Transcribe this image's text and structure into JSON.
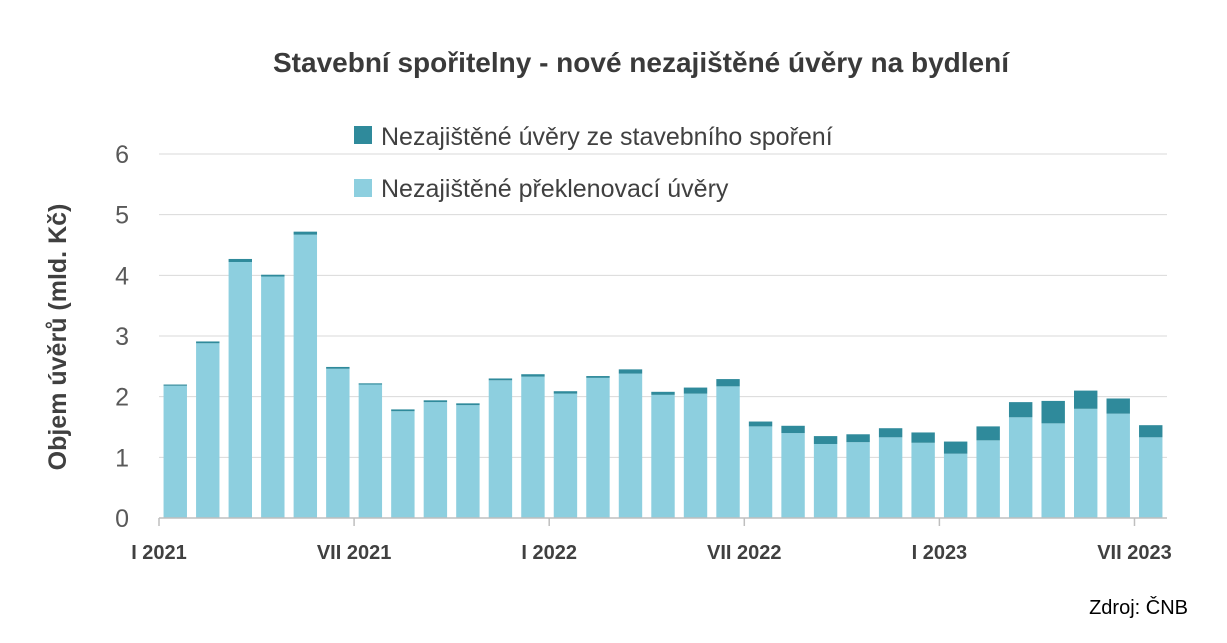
{
  "chart_data": {
    "type": "bar",
    "stacked": true,
    "title": "Stavební spořitelny - nové nezajištěné úvěry na bydlení",
    "ylabel": "Objem úvěrů (mld. Kč)",
    "xlabel": "",
    "ylim": [
      0,
      6
    ],
    "yticks": [
      0,
      1,
      2,
      3,
      4,
      5,
      6
    ],
    "grid": true,
    "legend_position": "top-center",
    "x_tick_labels": [
      {
        "index": 0,
        "label": "I 2021"
      },
      {
        "index": 6,
        "label": "VII 2021"
      },
      {
        "index": 12,
        "label": "I 2022"
      },
      {
        "index": 18,
        "label": "VII 2022"
      },
      {
        "index": 24,
        "label": "I 2023"
      },
      {
        "index": 30,
        "label": "VII 2023"
      }
    ],
    "categories": [
      "I 2021",
      "II 2021",
      "III 2021",
      "IV 2021",
      "V 2021",
      "VI 2021",
      "VII 2021",
      "VIII 2021",
      "IX 2021",
      "X 2021",
      "XI 2021",
      "XII 2021",
      "I 2022",
      "II 2022",
      "III 2022",
      "IV 2022",
      "V 2022",
      "VI 2022",
      "VII 2022",
      "VIII 2022",
      "IX 2022",
      "X 2022",
      "XI 2022",
      "XII 2022",
      "I 2023",
      "II 2023",
      "III 2023",
      "IV 2023",
      "V 2023",
      "VI 2023",
      "VII 2023"
    ],
    "series": [
      {
        "name": "Nezajištěné překlenovací úvěry",
        "color": "#8dcfdf",
        "values": [
          2.18,
          2.88,
          4.22,
          3.98,
          4.67,
          2.46,
          2.2,
          1.76,
          1.91,
          1.86,
          2.27,
          2.33,
          2.05,
          2.31,
          2.38,
          2.03,
          2.05,
          2.17,
          1.51,
          1.4,
          1.22,
          1.25,
          1.33,
          1.24,
          1.06,
          1.28,
          1.66,
          1.56,
          1.8,
          1.72,
          1.33
        ]
      },
      {
        "name": "Nezajištěné úvěry ze stavebního spoření",
        "color": "#2f8a9b",
        "values": [
          0.02,
          0.03,
          0.05,
          0.03,
          0.05,
          0.03,
          0.02,
          0.03,
          0.03,
          0.03,
          0.03,
          0.04,
          0.04,
          0.03,
          0.07,
          0.05,
          0.1,
          0.12,
          0.08,
          0.12,
          0.13,
          0.13,
          0.15,
          0.17,
          0.2,
          0.23,
          0.25,
          0.37,
          0.3,
          0.25,
          0.2
        ]
      }
    ]
  },
  "source": "Zdroj: ČNB"
}
